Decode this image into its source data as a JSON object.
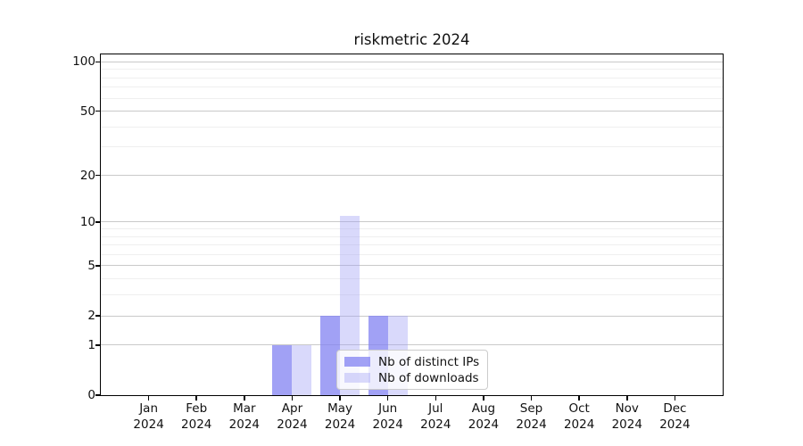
{
  "title": "riskmetric 2024",
  "chart_data": {
    "type": "bar",
    "title": "riskmetric 2024",
    "categories": [
      "Jan 2024",
      "Feb 2024",
      "Mar 2024",
      "Apr 2024",
      "May 2024",
      "Jun 2024",
      "Jul 2024",
      "Aug 2024",
      "Sep 2024",
      "Oct 2024",
      "Nov 2024",
      "Dec 2024"
    ],
    "series": [
      {
        "name": "Nb of distinct IPs",
        "values": [
          0,
          0,
          0,
          1,
          2,
          2,
          0,
          0,
          0,
          0,
          0,
          0
        ],
        "color": "rgba(130,130,242,0.75)"
      },
      {
        "name": "Nb of downloads",
        "values": [
          0,
          0,
          0,
          1,
          11,
          2,
          0,
          0,
          0,
          0,
          0,
          0
        ],
        "color": "rgba(160,160,245,0.40)"
      }
    ],
    "xlabel": "",
    "ylabel": "",
    "yscale": "log1p",
    "ylim": [
      0,
      111
    ],
    "ytick_values": [
      0,
      1,
      2,
      5,
      10,
      20,
      50,
      100
    ],
    "ytick_labels": [
      "0",
      "1",
      "2",
      "5",
      "10",
      "20",
      "50",
      "100"
    ],
    "minor_gridline_values": [
      3,
      4,
      6,
      7,
      8,
      9,
      30,
      40,
      60,
      70,
      80,
      90
    ],
    "grid": true,
    "legend_position": "lower right inside plot"
  },
  "legend": {
    "items": [
      {
        "label": "Nb of distinct IPs",
        "swatch": "dark-periwinkle"
      },
      {
        "label": "Nb of downloads",
        "swatch": "light-periwinkle"
      }
    ]
  },
  "colors": {
    "series_dark": "rgba(130,130,242,0.75)",
    "series_light": "rgba(160,160,245,0.40)",
    "major_grid": "#c9c9c9",
    "minor_grid": "#efefef",
    "spine": "#000000",
    "legend_border": "#cccccc",
    "background": "#ffffff"
  }
}
